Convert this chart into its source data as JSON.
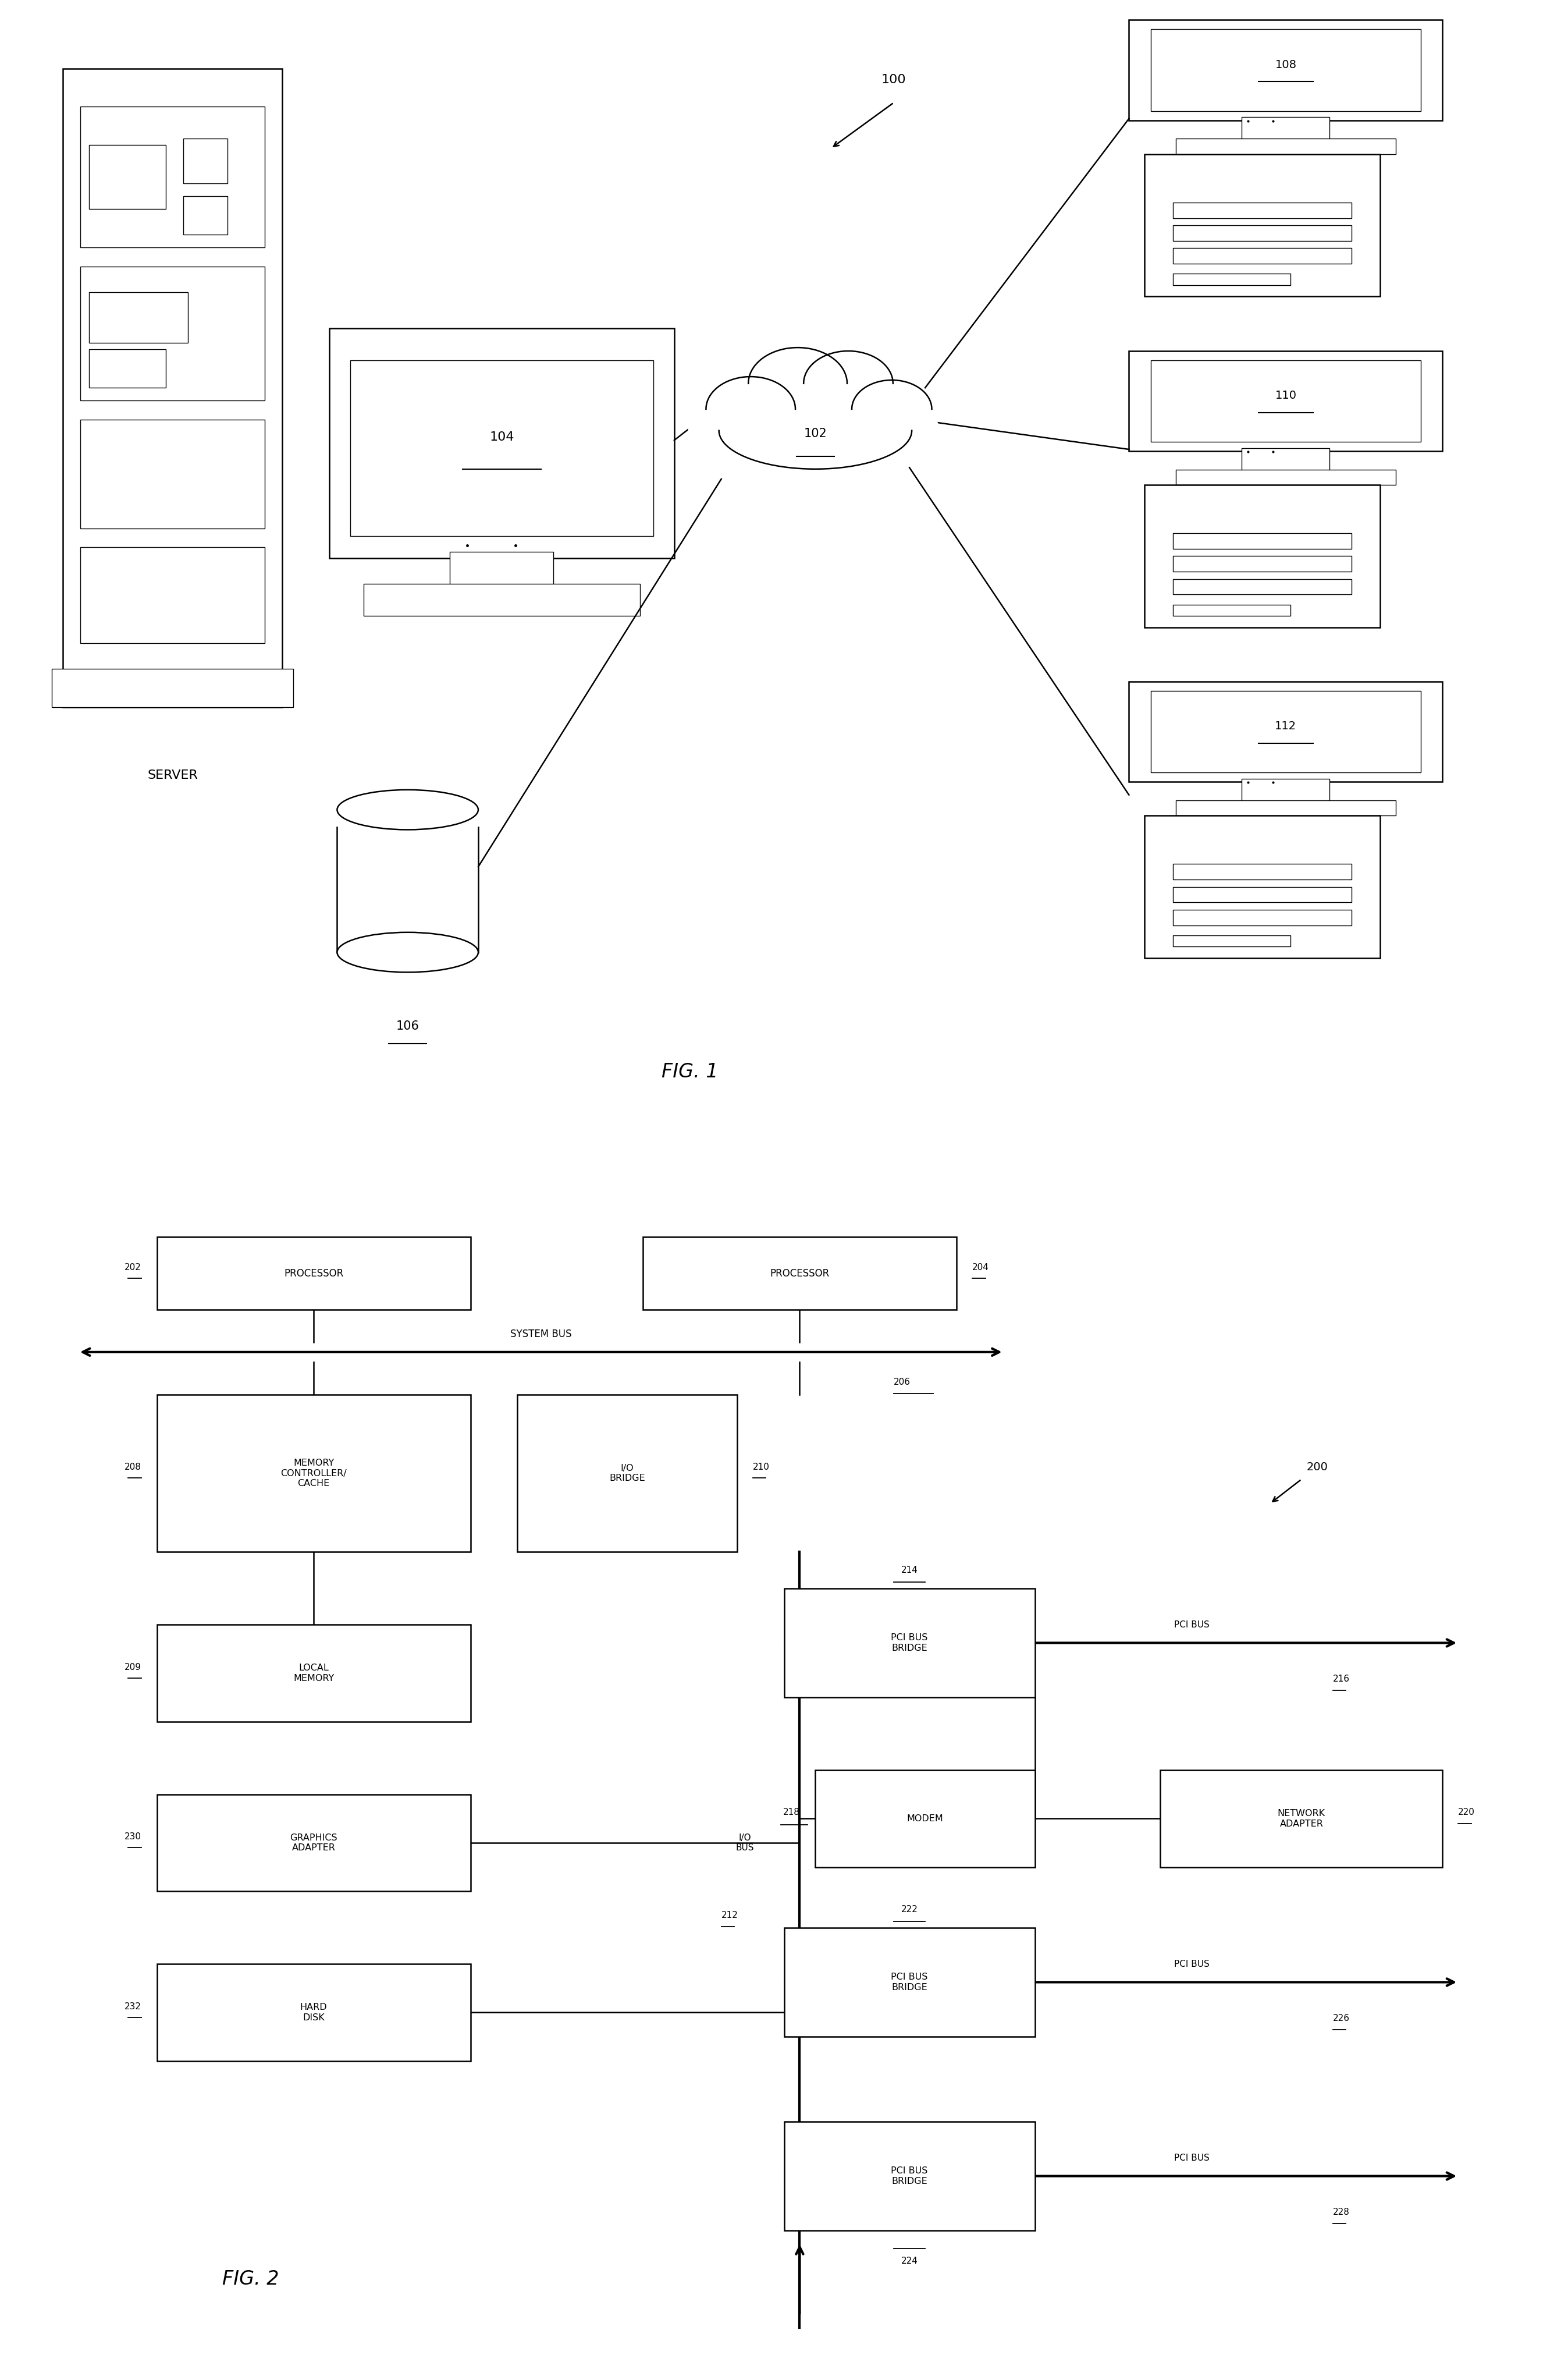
{
  "fig_width": 26.95,
  "fig_height": 40.82,
  "bg_color": "#ffffff",
  "line_color": "#000000",
  "fig1": {
    "title": "FIG. 1",
    "label_100": "100",
    "label_102": "102",
    "label_104": "104",
    "label_106": "106",
    "label_108": "108",
    "label_110": "110",
    "label_112": "112",
    "server_label": "SERVER"
  },
  "fig2": {
    "title": "FIG. 2",
    "label_200": "200",
    "label_202": "202",
    "label_204": "204",
    "label_206": "206",
    "label_208": "208",
    "label_209": "209",
    "label_210": "210",
    "label_212": "212",
    "label_214": "214",
    "label_216": "216",
    "label_218": "218",
    "label_220": "220",
    "label_222": "222",
    "label_224": "224",
    "label_226": "226",
    "label_228": "228",
    "label_230": "230",
    "label_232": "232",
    "proc1": "PROCESSOR",
    "proc2": "PROCESSOR",
    "sysbus": "SYSTEM BUS",
    "mem_ctrl": "MEMORY\nCONTROLLER/\nCACHE",
    "io_bridge": "I/O\nBRIDGE",
    "local_mem": "LOCAL\nMEMORY",
    "pci_bus_bridge1": "PCI BUS\nBRIDGE",
    "pci_bus1": "PCI BUS",
    "io_bus": "I/O\nBUS",
    "modem": "MODEM",
    "net_adapter": "NETWORK\nADAPTER",
    "graphics": "GRAPHICS\nADAPTER",
    "hard_disk": "HARD\nDISK",
    "pci_bus2": "PCI BUS",
    "pci_bus3": "PCI BUS",
    "pci_bridge2": "PCI BUS\nBRIDGE",
    "pci_bridge3": "PCI BUS\nBRIDGE"
  }
}
